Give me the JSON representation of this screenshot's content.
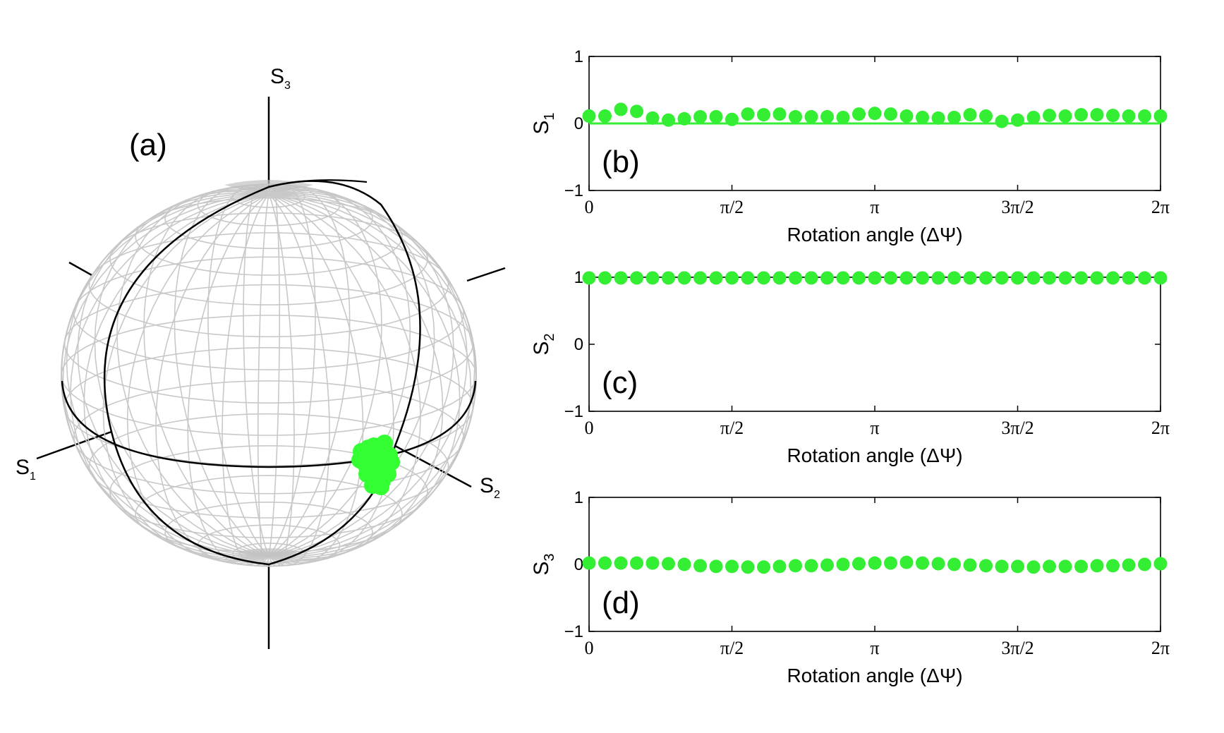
{
  "panel_a": {
    "label": "(a)",
    "axes": {
      "s1": {
        "main": "S",
        "sub": "1"
      },
      "s2": {
        "main": "S",
        "sub": "2"
      },
      "s3": {
        "main": "S",
        "sub": "3"
      }
    },
    "cluster_color": "#33ff33"
  },
  "chart_data": [
    {
      "type": "scatter",
      "panel_label": "(b)",
      "ylabel_main": "S",
      "ylabel_sub": "1",
      "xlabel": "Rotation angle (ΔΨ)",
      "xlim": [
        0,
        6.2832
      ],
      "ylim": [
        -1,
        1
      ],
      "x_ticks": [
        "0",
        "π/2",
        "π",
        "3π/2",
        "2π"
      ],
      "y_ticks": [
        "1",
        "0",
        "−1"
      ],
      "reference_line": 0.0,
      "color": "#33ee33",
      "grid": false,
      "values": [
        0.11,
        0.11,
        0.21,
        0.18,
        0.08,
        0.05,
        0.07,
        0.1,
        0.1,
        0.06,
        0.14,
        0.13,
        0.14,
        0.1,
        0.1,
        0.1,
        0.09,
        0.14,
        0.15,
        0.14,
        0.11,
        0.09,
        0.08,
        0.09,
        0.13,
        0.11,
        0.03,
        0.05,
        0.09,
        0.12,
        0.11,
        0.13,
        0.13,
        0.12,
        0.11,
        0.11,
        0.11
      ]
    },
    {
      "type": "scatter",
      "panel_label": "(c)",
      "ylabel_main": "S",
      "ylabel_sub": "2",
      "xlabel": "Rotation angle (ΔΨ)",
      "xlim": [
        0,
        6.2832
      ],
      "ylim": [
        -1,
        1
      ],
      "x_ticks": [
        "0",
        "π/2",
        "π",
        "3π/2",
        "2π"
      ],
      "y_ticks": [
        "1",
        "0",
        "−1"
      ],
      "color": "#33ee33",
      "grid": false,
      "values": [
        0.99,
        0.99,
        0.99,
        0.99,
        0.99,
        0.99,
        0.99,
        0.99,
        0.99,
        0.99,
        0.99,
        0.99,
        0.99,
        0.99,
        0.99,
        0.99,
        0.99,
        0.99,
        0.99,
        0.99,
        0.99,
        0.99,
        0.99,
        0.99,
        0.99,
        0.99,
        0.99,
        0.99,
        0.99,
        0.99,
        0.99,
        0.99,
        0.99,
        0.99,
        0.99,
        0.99,
        0.99
      ]
    },
    {
      "type": "scatter",
      "panel_label": "(d)",
      "ylabel_main": "S",
      "ylabel_sub": "3",
      "xlabel": "Rotation angle (ΔΨ)",
      "xlim": [
        0,
        6.2832
      ],
      "ylim": [
        -1,
        1
      ],
      "x_ticks": [
        "0",
        "π/2",
        "π",
        "3π/2",
        "2π"
      ],
      "y_ticks": [
        "1",
        "0",
        "−1"
      ],
      "color": "#33ee33",
      "grid": false,
      "values": [
        0.02,
        0.02,
        0.02,
        0.02,
        0.02,
        0.01,
        0.0,
        -0.02,
        -0.03,
        -0.03,
        -0.04,
        -0.04,
        -0.03,
        -0.02,
        -0.02,
        -0.01,
        0.0,
        0.01,
        0.02,
        0.02,
        0.03,
        0.02,
        0.01,
        0.0,
        -0.01,
        -0.02,
        -0.03,
        -0.03,
        -0.04,
        -0.03,
        -0.03,
        -0.03,
        -0.02,
        -0.02,
        -0.01,
        0.0,
        0.01
      ]
    }
  ]
}
